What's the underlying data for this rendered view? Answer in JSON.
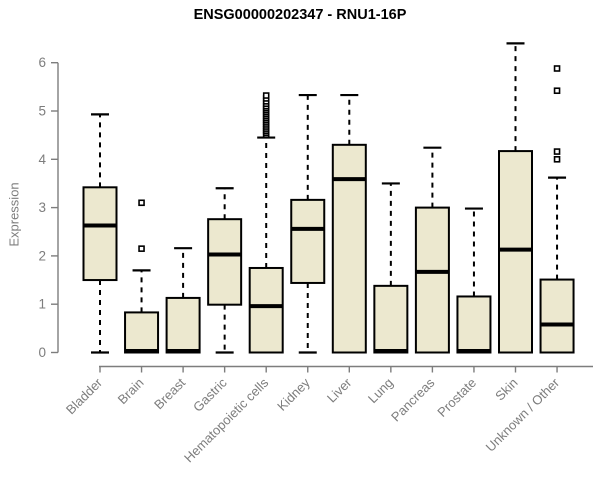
{
  "chart_data": {
    "type": "boxplot",
    "title": "ENSG00000202347 - RNU1-16P",
    "ylabel": "Expression",
    "xlabel": "",
    "ylim": [
      0,
      6
    ],
    "yticks": [
      0,
      1,
      2,
      3,
      4,
      5,
      6
    ],
    "grid": "off",
    "legend": "none",
    "categories": [
      "Bladder",
      "Brain",
      "Breast",
      "Gastric",
      "Hematopoietic cells",
      "Kidney",
      "Liver",
      "Lung",
      "Pancreas",
      "Prostate",
      "Skin",
      "Unknown / Other"
    ],
    "series": [
      {
        "category": "Bladder",
        "whisker_low": 0,
        "q1": 1.5,
        "median": 2.63,
        "q3": 3.42,
        "whisker_high": 4.93,
        "outliers": []
      },
      {
        "category": "Brain",
        "whisker_low": 0,
        "q1": 0.0,
        "median": 0.03,
        "q3": 0.83,
        "whisker_high": 1.7,
        "outliers": [
          3.1,
          2.15
        ]
      },
      {
        "category": "Breast",
        "whisker_low": 0,
        "q1": 0.0,
        "median": 0.03,
        "q3": 1.13,
        "whisker_high": 2.16,
        "outliers": []
      },
      {
        "category": "Gastric",
        "whisker_low": 0,
        "q1": 0.99,
        "median": 2.03,
        "q3": 2.76,
        "whisker_high": 3.4,
        "outliers": []
      },
      {
        "category": "Hematopoietic cells",
        "whisker_low": 0,
        "q1": 0.0,
        "median": 0.96,
        "q3": 1.75,
        "whisker_high": 4.45,
        "outliers": [
          4.5,
          4.54,
          4.58,
          4.62,
          4.66,
          4.7,
          4.74,
          4.78,
          4.82,
          4.86,
          4.9,
          4.94,
          4.98,
          5.02,
          5.06,
          5.1,
          5.15,
          5.2,
          5.26,
          5.32
        ]
      },
      {
        "category": "Kidney",
        "whisker_low": 0,
        "q1": 1.44,
        "median": 2.56,
        "q3": 3.16,
        "whisker_high": 5.33,
        "outliers": []
      },
      {
        "category": "Liver",
        "whisker_low": 0,
        "q1": 0.0,
        "median": 3.59,
        "q3": 4.3,
        "whisker_high": 5.33,
        "outliers": []
      },
      {
        "category": "Lung",
        "whisker_low": 0,
        "q1": 0.0,
        "median": 0.03,
        "q3": 1.38,
        "whisker_high": 3.5,
        "outliers": []
      },
      {
        "category": "Pancreas",
        "whisker_low": 0,
        "q1": 0.0,
        "median": 1.67,
        "q3": 3.0,
        "whisker_high": 4.24,
        "outliers": []
      },
      {
        "category": "Prostate",
        "whisker_low": 0,
        "q1": 0.0,
        "median": 0.03,
        "q3": 1.16,
        "whisker_high": 2.98,
        "outliers": []
      },
      {
        "category": "Skin",
        "whisker_low": 0,
        "q1": 0.0,
        "median": 2.13,
        "q3": 4.17,
        "whisker_high": 6.4,
        "outliers": []
      },
      {
        "category": "Unknown / Other",
        "whisker_low": 0,
        "q1": 0.0,
        "median": 0.58,
        "q3": 1.51,
        "whisker_high": 3.62,
        "outliers": [
          5.88,
          5.42,
          4.16,
          4.0
        ]
      }
    ],
    "colors": {
      "box_fill": "#ece8cf",
      "box_border": "#000000",
      "median": "#000000",
      "whisker": "#000000",
      "outlier": "#000000",
      "axis": "#7d7d7d",
      "tick_label": "#7d7d7d",
      "title": "#000000"
    }
  }
}
